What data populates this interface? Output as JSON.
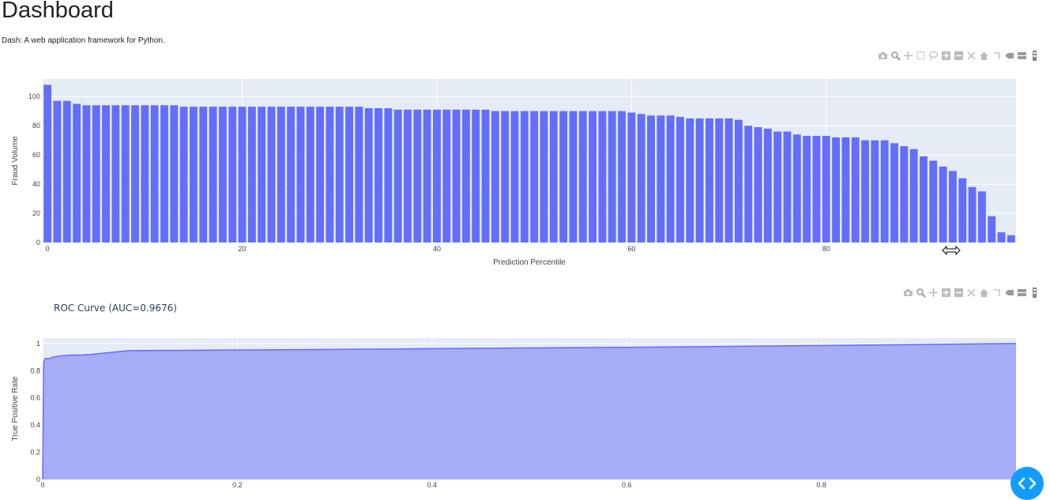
{
  "page": {
    "title": "Dashboard",
    "subtitle": "Dash: A web application framework for Python."
  },
  "modebar": {
    "icons": [
      "camera-icon",
      "zoom-icon",
      "pan-icon",
      "box-select-icon",
      "lasso-icon",
      "zoom-in-icon",
      "zoom-out-icon",
      "autoscale-icon",
      "reset-axes-icon",
      "spike-lines-icon",
      "hover-closest-icon",
      "hover-compare-icon",
      "plotly-logo-icon"
    ]
  },
  "colors": {
    "bar": "#636efa",
    "plot_bg": "#e5ecf6",
    "area_fill": "#a2a9f4",
    "accent": "#119dff"
  },
  "chart_data": [
    {
      "type": "bar",
      "xlabel": "Prediction Percentile",
      "ylabel": "Fraud Volume",
      "xlim": [
        -0.5,
        99.5
      ],
      "ylim": [
        0,
        112
      ],
      "x_ticks": [
        0,
        20,
        40,
        60,
        80
      ],
      "y_ticks": [
        0,
        20,
        40,
        60,
        80,
        100
      ],
      "grid": true,
      "legend": "none",
      "x": [
        0,
        1,
        2,
        3,
        4,
        5,
        6,
        7,
        8,
        9,
        10,
        11,
        12,
        13,
        14,
        15,
        16,
        17,
        18,
        19,
        20,
        21,
        22,
        23,
        24,
        25,
        26,
        27,
        28,
        29,
        30,
        31,
        32,
        33,
        34,
        35,
        36,
        37,
        38,
        39,
        40,
        41,
        42,
        43,
        44,
        45,
        46,
        47,
        48,
        49,
        50,
        51,
        52,
        53,
        54,
        55,
        56,
        57,
        58,
        59,
        60,
        61,
        62,
        63,
        64,
        65,
        66,
        67,
        68,
        69,
        70,
        71,
        72,
        73,
        74,
        75,
        76,
        77,
        78,
        79,
        80,
        81,
        82,
        83,
        84,
        85,
        86,
        87,
        88,
        89,
        90,
        91,
        92,
        93,
        94,
        95,
        96,
        97,
        98,
        99
      ],
      "values": [
        108,
        97,
        97,
        95,
        94,
        94,
        94,
        94,
        94,
        94,
        94,
        94,
        94,
        94,
        93,
        93,
        93,
        93,
        93,
        93,
        93,
        93,
        93,
        93,
        93,
        93,
        93,
        93,
        93,
        93,
        93,
        93,
        93,
        92,
        92,
        92,
        91,
        91,
        91,
        91,
        91,
        91,
        91,
        91,
        91,
        91,
        90,
        90,
        90,
        90,
        90,
        90,
        90,
        90,
        90,
        90,
        90,
        90,
        90,
        90,
        89,
        88,
        87,
        87,
        87,
        86,
        85,
        85,
        85,
        85,
        85,
        84,
        80,
        79,
        78,
        76,
        76,
        74,
        73,
        73,
        73,
        72,
        72,
        72,
        70,
        70,
        70,
        68,
        66,
        64,
        59,
        56,
        52,
        49,
        44,
        38,
        35,
        18,
        7,
        5
      ]
    },
    {
      "type": "area",
      "title": "ROC Curve (AUC=0.9676)",
      "xlabel": "",
      "ylabel": "True Positive Rate",
      "xlim": [
        0,
        1
      ],
      "ylim": [
        0,
        1.04
      ],
      "x_ticks": [
        0,
        0.2,
        0.4,
        0.6,
        0.8
      ],
      "y_ticks": [
        0,
        0.2,
        0.4,
        0.6,
        0.8,
        1
      ],
      "grid": true,
      "legend": "none",
      "x": [
        0,
        0.001,
        0.002,
        0.003,
        0.005,
        0.008,
        0.01,
        0.02,
        0.03,
        0.04,
        0.05,
        0.07,
        0.09,
        0.2,
        0.4,
        0.6,
        0.8,
        1.0
      ],
      "y": [
        0,
        0.86,
        0.88,
        0.89,
        0.89,
        0.89,
        0.9,
        0.91,
        0.915,
        0.915,
        0.92,
        0.935,
        0.948,
        0.952,
        0.962,
        0.972,
        0.985,
        1.0
      ]
    }
  ]
}
